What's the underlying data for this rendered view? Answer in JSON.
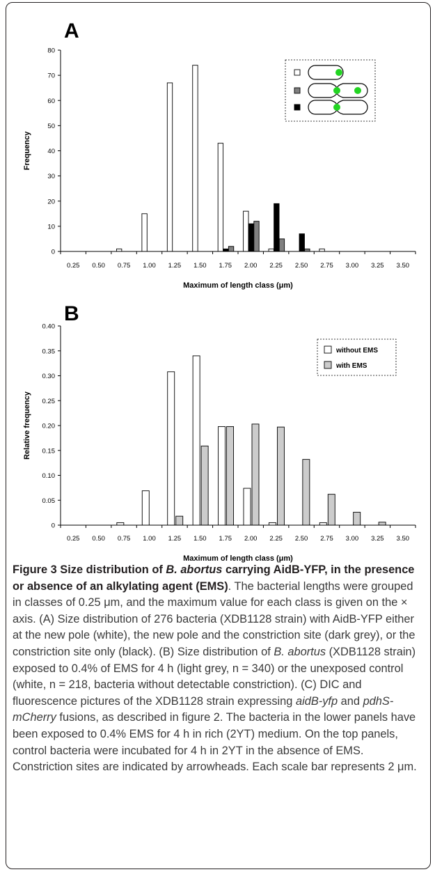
{
  "chart_data": [
    {
      "panel_label": "A",
      "type": "bar",
      "categories": [
        "0.25",
        "0.50",
        "0.75",
        "1.00",
        "1.25",
        "1.50",
        "1.75",
        "2.00",
        "2.25",
        "2.50",
        "2.75",
        "3.00",
        "3.25",
        "3.50"
      ],
      "series": [
        {
          "values": [
            0,
            0,
            1,
            15,
            67,
            74,
            43,
            16,
            1,
            0,
            1,
            0,
            0,
            0
          ]
        },
        {
          "values": [
            0,
            0,
            0,
            0,
            0,
            0,
            1,
            11,
            19,
            7,
            0,
            0,
            0,
            0
          ]
        },
        {
          "values": [
            0,
            0,
            0,
            0,
            0,
            0,
            2,
            12,
            5,
            1,
            0,
            0,
            0,
            0
          ]
        }
      ],
      "series_colors": [
        "#ffffff",
        "#000000",
        "#808080"
      ],
      "legend_swatches": [
        "#ffffff",
        "#808080",
        "#000000"
      ],
      "legend_placement": "top-right",
      "xlabel": "Maximum of length class (μm)",
      "ylabel": "Frequency",
      "ylim": [
        0,
        80
      ],
      "yticks": [
        "0",
        "10",
        "20",
        "30",
        "40",
        "50",
        "60",
        "70",
        "80"
      ],
      "grid": false
    },
    {
      "panel_label": "B",
      "type": "bar",
      "categories": [
        "0.25",
        "0.50",
        "0.75",
        "1.00",
        "1.25",
        "1.50",
        "1.75",
        "2.00",
        "2.25",
        "2.50",
        "2.75",
        "3.00",
        "3.25",
        "3.50"
      ],
      "series": [
        {
          "name": "without EMS",
          "values": [
            0,
            0,
            0.005,
            0.069,
            0.308,
            0.34,
            0.198,
            0.074,
            0.005,
            0,
            0.005,
            0,
            0,
            0
          ]
        },
        {
          "name": "with EMS",
          "values": [
            0,
            0,
            0,
            0,
            0.018,
            0.159,
            0.198,
            0.203,
            0.197,
            0.132,
            0.062,
            0.026,
            0.006,
            0
          ]
        }
      ],
      "series_colors": [
        "#ffffff",
        "#cccccc"
      ],
      "legend_placement": "top-right",
      "xlabel": "Maximum of length class (μm)",
      "ylabel": "Relative frequency",
      "ylim": [
        0,
        0.4
      ],
      "yticks": [
        "0",
        "0.05",
        "0.10",
        "0.15",
        "0.20",
        "0.25",
        "0.30",
        "0.35",
        "0.40"
      ],
      "grid": false
    }
  ],
  "caption": {
    "title_parts": [
      "Figure 3 Size distribution of ",
      "B. abortus",
      " carrying AidB-YFP, in the presence or absence of an alkylating agent (EMS)",
      "."
    ],
    "body_parts": [
      " The bacterial lengths were grouped in classes of 0.25 μm, and the maximum value for each class is given on the × axis. (A) Size distribution of 276 bacteria (XDB1128 strain) with AidB-YFP either at the new pole (white), the new pole and the constriction site (dark grey), or the constriction site only (black). (B) Size distribution of ",
      "B. abortus",
      " (XDB1128 strain) exposed to 0.4% of EMS for 4 h (light grey, n = 340) or the unexposed control (white, n = 218, bacteria without detectable constriction). (C) DIC and fluorescence pictures of the XDB1128 strain expressing ",
      "aidB-yfp",
      " and ",
      "pdhS-mCherry",
      " fusions, as described in figure 2. The bacteria in the lower panels have been exposed to 0.4% EMS for 4 h in rich (2YT) medium. On the top panels, control bacteria were incubated for 4 h in 2YT in the absence of EMS. Constriction sites are indicated by arrowheads. Each scale bar represents 2 μm."
    ]
  }
}
